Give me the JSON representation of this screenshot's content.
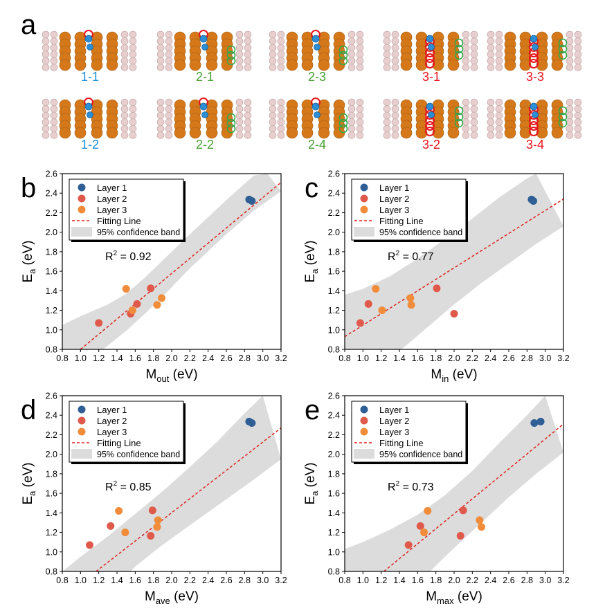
{
  "panel_a": {
    "letter": "a",
    "structures": [
      {
        "label": "1-1",
        "color": "#1e90d8",
        "layer": 1
      },
      {
        "label": "2-1",
        "color": "#46a032",
        "layer": 2
      },
      {
        "label": "2-3",
        "color": "#46a032",
        "layer": 2
      },
      {
        "label": "3-1",
        "color": "#e8141e",
        "layer": 3
      },
      {
        "label": "3-3",
        "color": "#e8141e",
        "layer": 3
      },
      {
        "label": "1-2",
        "color": "#1e90d8",
        "layer": 1
      },
      {
        "label": "2-2",
        "color": "#46a032",
        "layer": 2
      },
      {
        "label": "2-4",
        "color": "#46a032",
        "layer": 2
      },
      {
        "label": "3-2",
        "color": "#e8141e",
        "layer": 3
      },
      {
        "label": "3-4",
        "color": "#e8141e",
        "layer": 3
      }
    ]
  },
  "legend": {
    "layer1": "Layer 1",
    "layer2": "Layer 2",
    "layer3": "Layer 3",
    "fit": "Fitting Line",
    "band": "95% confidence band"
  },
  "colors": {
    "layer1": "#2f5f95",
    "layer2": "#df5a4b",
    "layer3": "#f08c3a",
    "fit": "#e0201b",
    "band": "#dcdcdc"
  },
  "chart_data": [
    {
      "panel": "b",
      "type": "scatter",
      "xlabel_main": "M",
      "xlabel_sub": "out",
      "xlabel_unit": " (eV)",
      "ylabel_main": "E",
      "ylabel_sub": "a",
      "ylabel_unit": " (eV)",
      "r2_text": "R",
      "r2_value": " = 0.92",
      "xlim": [
        0.8,
        3.2
      ],
      "ylim": [
        0.8,
        2.6
      ],
      "xticks": [
        "0.8",
        "1.0",
        "1.2",
        "1.4",
        "1.6",
        "1.8",
        "2.0",
        "2.2",
        "2.4",
        "2.6",
        "2.8",
        "3.0",
        "3.2"
      ],
      "yticks": [
        "0.8",
        "1.0",
        "1.2",
        "1.4",
        "1.6",
        "1.8",
        "2.0",
        "2.2",
        "2.4",
        "2.6"
      ],
      "series": [
        {
          "name": "Layer 1",
          "points": [
            [
              2.85,
              2.335
            ],
            [
              2.88,
              2.32
            ]
          ]
        },
        {
          "name": "Layer 2",
          "points": [
            [
              1.2,
              1.07
            ],
            [
              1.55,
              1.165
            ],
            [
              1.62,
              1.265
            ],
            [
              1.77,
              1.425
            ]
          ]
        },
        {
          "name": "Layer 3",
          "points": [
            [
              1.5,
              1.42
            ],
            [
              1.57,
              1.2
            ],
            [
              1.84,
              1.255
            ],
            [
              1.89,
              1.325
            ]
          ]
        }
      ],
      "fit": [
        [
          1.0,
          0.8
        ],
        [
          3.2,
          2.51
        ]
      ],
      "band_upper": [
        [
          0.8,
          1.05
        ],
        [
          1.0,
          1.14
        ],
        [
          1.3,
          1.26
        ],
        [
          1.5,
          1.37
        ],
        [
          1.7,
          1.53
        ],
        [
          1.9,
          1.71
        ],
        [
          2.2,
          1.98
        ],
        [
          2.6,
          2.33
        ],
        [
          2.9,
          2.58
        ],
        [
          3.05,
          2.6
        ]
      ],
      "band_lower": [
        [
          3.2,
          2.42
        ],
        [
          2.9,
          2.22
        ],
        [
          2.6,
          1.98
        ],
        [
          2.2,
          1.63
        ],
        [
          1.9,
          1.34
        ],
        [
          1.7,
          1.16
        ],
        [
          1.5,
          0.99
        ],
        [
          1.3,
          0.84
        ],
        [
          1.25,
          0.8
        ],
        [
          0.8,
          0.8
        ]
      ]
    },
    {
      "panel": "c",
      "type": "scatter",
      "xlabel_main": "M",
      "xlabel_sub": "in",
      "xlabel_unit": " (eV)",
      "ylabel_main": "E",
      "ylabel_sub": "a",
      "ylabel_unit": " (eV)",
      "r2_text": "R",
      "r2_value": " = 0.77",
      "xlim": [
        0.8,
        3.2
      ],
      "ylim": [
        0.8,
        2.6
      ],
      "xticks": [
        "0.8",
        "1.0",
        "1.2",
        "1.4",
        "1.6",
        "1.8",
        "2.0",
        "2.2",
        "2.4",
        "2.6",
        "2.8",
        "3.0",
        "3.2"
      ],
      "yticks": [
        "0.8",
        "1.0",
        "1.2",
        "1.4",
        "1.6",
        "1.8",
        "2.0",
        "2.2",
        "2.4",
        "2.6"
      ],
      "series": [
        {
          "name": "Layer 1",
          "points": [
            [
              2.85,
              2.335
            ],
            [
              2.87,
              2.32
            ]
          ]
        },
        {
          "name": "Layer 2",
          "points": [
            [
              0.97,
              1.07
            ],
            [
              1.06,
              1.265
            ],
            [
              1.81,
              1.425
            ],
            [
              2.0,
              1.165
            ]
          ]
        },
        {
          "name": "Layer 3",
          "points": [
            [
              1.14,
              1.42
            ],
            [
              1.21,
              1.2
            ],
            [
              1.52,
              1.325
            ],
            [
              1.53,
              1.255
            ]
          ]
        }
      ],
      "fit": [
        [
          0.8,
          0.93
        ],
        [
          3.2,
          2.34
        ]
      ],
      "band_upper": [
        [
          0.8,
          1.36
        ],
        [
          1.0,
          1.42
        ],
        [
          1.3,
          1.55
        ],
        [
          1.6,
          1.73
        ],
        [
          1.9,
          1.93
        ],
        [
          2.2,
          2.14
        ],
        [
          2.5,
          2.36
        ],
        [
          2.8,
          2.55
        ],
        [
          2.9,
          2.6
        ]
      ],
      "band_lower": [
        [
          3.2,
          2.06
        ],
        [
          2.9,
          1.88
        ],
        [
          2.6,
          1.68
        ],
        [
          2.3,
          1.48
        ],
        [
          2.0,
          1.26
        ],
        [
          1.7,
          1.02
        ],
        [
          1.5,
          0.86
        ],
        [
          1.42,
          0.8
        ],
        [
          0.8,
          0.8
        ]
      ]
    },
    {
      "panel": "d",
      "type": "scatter",
      "xlabel_main": "M",
      "xlabel_sub": "ave",
      "xlabel_unit": " (eV)",
      "ylabel_main": "E",
      "ylabel_sub": "a",
      "ylabel_unit": " (eV)",
      "r2_text": "R",
      "r2_value": " = 0.85",
      "xlim": [
        0.8,
        3.2
      ],
      "ylim": [
        0.8,
        2.6
      ],
      "xticks": [
        "0.8",
        "1.0",
        "1.2",
        "1.4",
        "1.6",
        "1.8",
        "2.0",
        "2.2",
        "2.4",
        "2.6",
        "2.8",
        "3.0",
        "3.2"
      ],
      "yticks": [
        "0.8",
        "1.0",
        "1.2",
        "1.4",
        "1.6",
        "1.8",
        "2.0",
        "2.2",
        "2.4",
        "2.6"
      ],
      "series": [
        {
          "name": "Layer 1",
          "points": [
            [
              2.85,
              2.335
            ],
            [
              2.88,
              2.32
            ]
          ]
        },
        {
          "name": "Layer 2",
          "points": [
            [
              1.1,
              1.07
            ],
            [
              1.33,
              1.265
            ],
            [
              1.77,
              1.165
            ],
            [
              1.79,
              1.425
            ]
          ]
        },
        {
          "name": "Layer 3",
          "points": [
            [
              1.42,
              1.42
            ],
            [
              1.49,
              1.2
            ],
            [
              1.84,
              1.255
            ],
            [
              1.85,
              1.325
            ]
          ]
        }
      ],
      "fit": [
        [
          1.17,
          0.8
        ],
        [
          3.2,
          2.27
        ]
      ],
      "band_upper": [
        [
          0.8,
          0.8
        ],
        [
          1.0,
          0.95
        ],
        [
          1.3,
          1.16
        ],
        [
          1.6,
          1.39
        ],
        [
          1.9,
          1.62
        ],
        [
          2.2,
          1.87
        ],
        [
          2.5,
          2.13
        ],
        [
          2.8,
          2.42
        ],
        [
          3.0,
          2.6
        ]
      ],
      "band_lower": [
        [
          3.2,
          1.95
        ],
        [
          2.9,
          1.74
        ],
        [
          2.6,
          1.54
        ],
        [
          2.3,
          1.34
        ],
        [
          2.0,
          1.14
        ],
        [
          1.8,
          1.0
        ],
        [
          1.6,
          0.85
        ],
        [
          1.55,
          0.8
        ],
        [
          0.8,
          0.8
        ]
      ]
    },
    {
      "panel": "e",
      "type": "scatter",
      "xlabel_main": "M",
      "xlabel_sub": "max",
      "xlabel_unit": " (eV)",
      "ylabel_main": "E",
      "ylabel_sub": "a",
      "ylabel_unit": " (eV)",
      "r2_text": "R",
      "r2_value": " = 0.73",
      "xlim": [
        0.8,
        3.2
      ],
      "ylim": [
        0.8,
        2.6
      ],
      "xticks": [
        "0.8",
        "1.0",
        "1.2",
        "1.4",
        "1.6",
        "1.8",
        "2.0",
        "2.2",
        "2.4",
        "2.6",
        "2.8",
        "3.0",
        "3.2"
      ],
      "yticks": [
        "0.8",
        "1.0",
        "1.2",
        "1.4",
        "1.6",
        "1.8",
        "2.0",
        "2.2",
        "2.4",
        "2.6"
      ],
      "series": [
        {
          "name": "Layer 1",
          "points": [
            [
              2.88,
              2.32
            ],
            [
              2.95,
              2.335
            ]
          ]
        },
        {
          "name": "Layer 2",
          "points": [
            [
              1.5,
              1.07
            ],
            [
              1.63,
              1.265
            ],
            [
              2.07,
              1.165
            ],
            [
              2.1,
              1.425
            ]
          ]
        },
        {
          "name": "Layer 3",
          "points": [
            [
              1.67,
              1.2
            ],
            [
              1.71,
              1.42
            ],
            [
              2.28,
              1.325
            ],
            [
              2.3,
              1.255
            ]
          ]
        }
      ],
      "fit": [
        [
          1.23,
          0.8
        ],
        [
          3.2,
          2.31
        ]
      ],
      "band_upper": [
        [
          0.8,
          1.03
        ],
        [
          1.0,
          1.1
        ],
        [
          1.3,
          1.23
        ],
        [
          1.6,
          1.38
        ],
        [
          1.9,
          1.58
        ],
        [
          2.2,
          1.83
        ],
        [
          2.5,
          2.12
        ],
        [
          2.8,
          2.4
        ],
        [
          3.0,
          2.6
        ]
      ],
      "band_lower": [
        [
          3.2,
          2.02
        ],
        [
          2.9,
          1.8
        ],
        [
          2.6,
          1.56
        ],
        [
          2.3,
          1.3
        ],
        [
          2.0,
          1.04
        ],
        [
          1.8,
          0.86
        ],
        [
          1.74,
          0.8
        ],
        [
          0.8,
          0.8
        ]
      ]
    }
  ]
}
